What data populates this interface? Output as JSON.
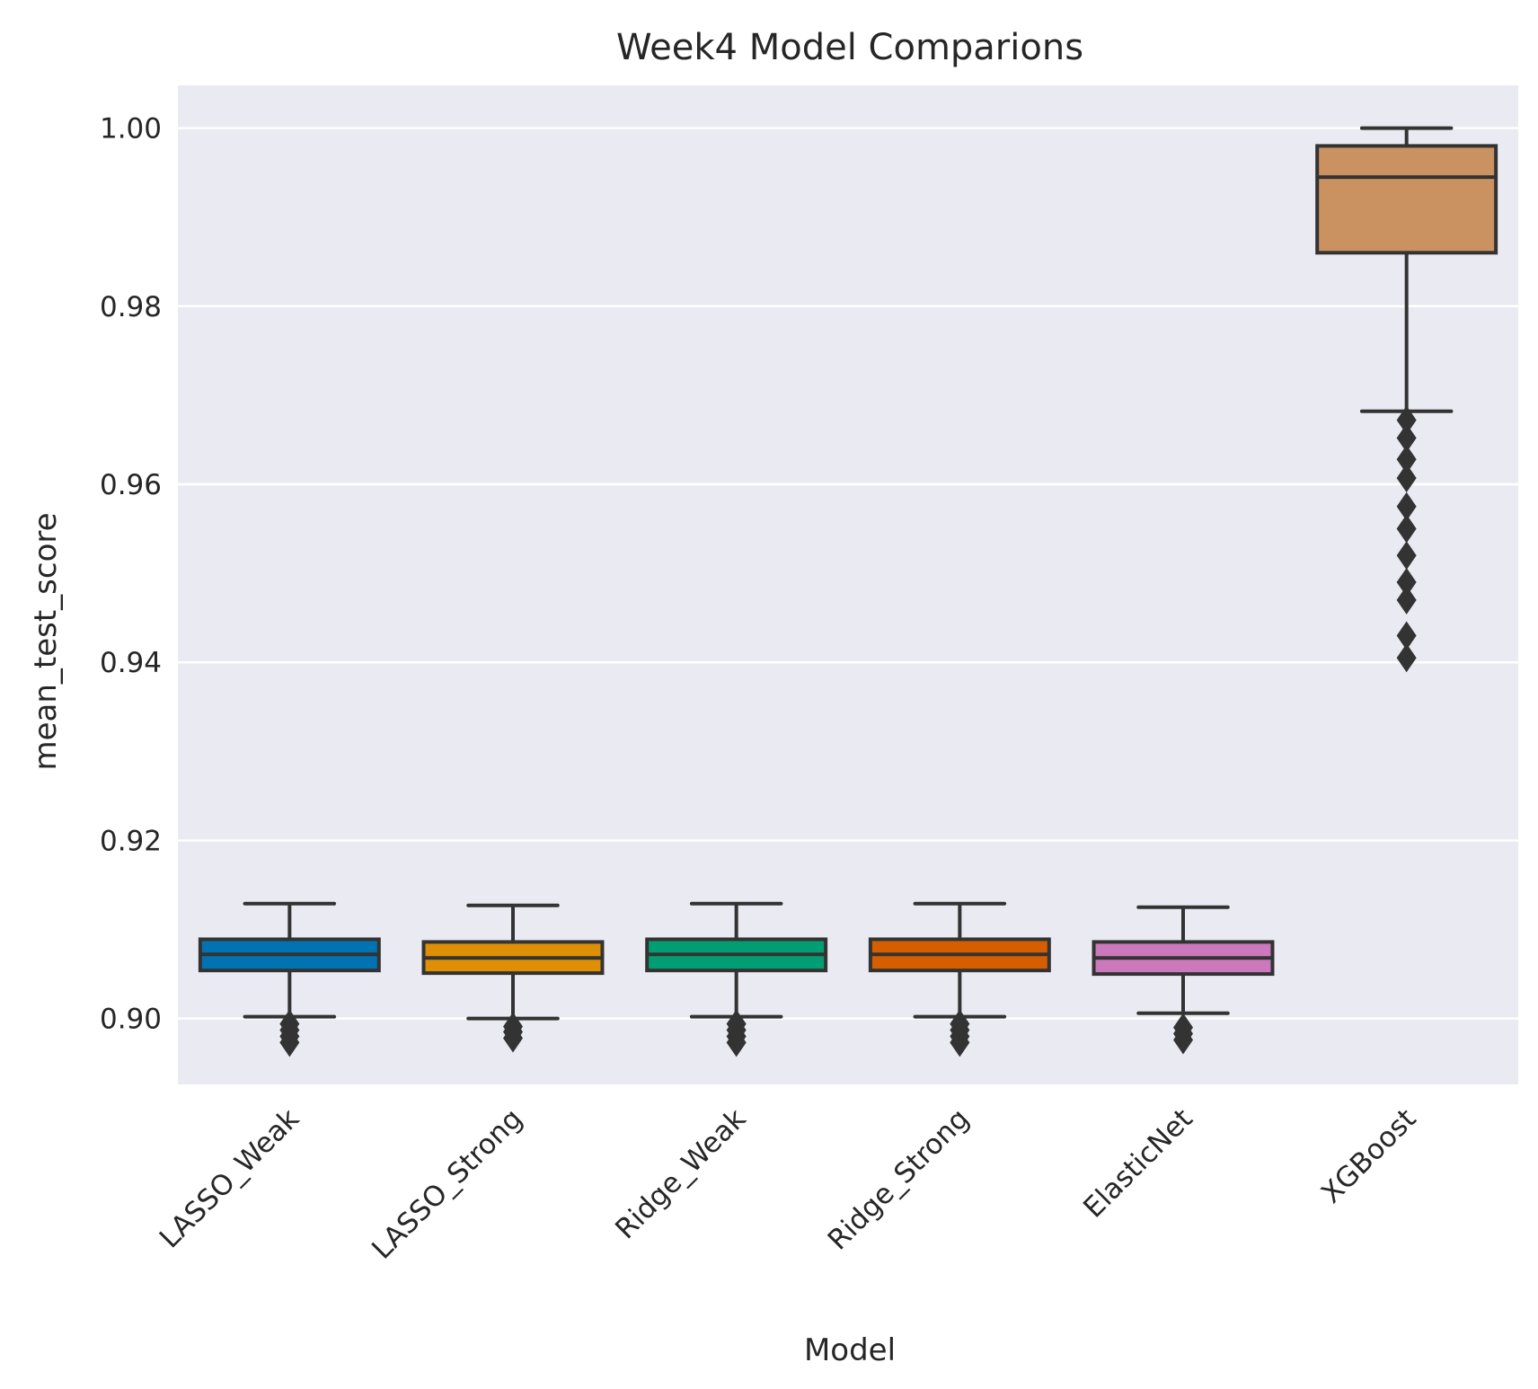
{
  "chart_data": {
    "type": "boxplot",
    "title": "Week4 Model Comparions",
    "xlabel": "Model",
    "ylabel": "mean_test_score",
    "ylim": [
      0.8926,
      1.0048
    ],
    "yticks": [
      0.9,
      0.92,
      0.94,
      0.96,
      0.98,
      1.0
    ],
    "ytick_labels": [
      "0.90",
      "0.92",
      "0.94",
      "0.96",
      "0.98",
      "1.00"
    ],
    "grid": true,
    "background": "#eaeaf2",
    "categories": [
      "LASSO_Weak",
      "LASSO_Strong",
      "Ridge_Weak",
      "Ridge_Strong",
      "ElasticNet",
      "XGBoost"
    ],
    "boxes": [
      {
        "name": "LASSO_Weak",
        "color": "#0173b2",
        "whisker_low": 0.9002,
        "q1": 0.9054,
        "median": 0.9072,
        "q3": 0.9089,
        "whisker_high": 0.9129,
        "outliers": [
          0.8973,
          0.898,
          0.8987,
          0.8994
        ]
      },
      {
        "name": "LASSO_Strong",
        "color": "#de8f05",
        "whisker_low": 0.9,
        "q1": 0.9051,
        "median": 0.9068,
        "q3": 0.9086,
        "whisker_high": 0.9127,
        "outliers": [
          0.8978,
          0.8985,
          0.8991
        ]
      },
      {
        "name": "Ridge_Weak",
        "color": "#029e73",
        "whisker_low": 0.9002,
        "q1": 0.9054,
        "median": 0.9072,
        "q3": 0.9089,
        "whisker_high": 0.9129,
        "outliers": [
          0.8973,
          0.898,
          0.8987,
          0.8994
        ]
      },
      {
        "name": "Ridge_Strong",
        "color": "#d55e00",
        "whisker_low": 0.9002,
        "q1": 0.9054,
        "median": 0.9072,
        "q3": 0.9089,
        "whisker_high": 0.9129,
        "outliers": [
          0.8973,
          0.898,
          0.8987,
          0.8994
        ]
      },
      {
        "name": "ElasticNet",
        "color": "#cc78bc",
        "whisker_low": 0.9006,
        "q1": 0.905,
        "median": 0.9068,
        "q3": 0.9086,
        "whisker_high": 0.9125,
        "outliers": [
          0.8976,
          0.8983,
          0.899
        ]
      },
      {
        "name": "XGBoost",
        "color": "#ca9161",
        "whisker_low": 0.9682,
        "q1": 0.986,
        "median": 0.9945,
        "q3": 0.998,
        "whisker_high": 1.0,
        "outliers": [
          0.9672,
          0.9652,
          0.9628,
          0.9607,
          0.9575,
          0.955,
          0.952,
          0.949,
          0.947,
          0.943,
          0.9405
        ]
      }
    ]
  }
}
